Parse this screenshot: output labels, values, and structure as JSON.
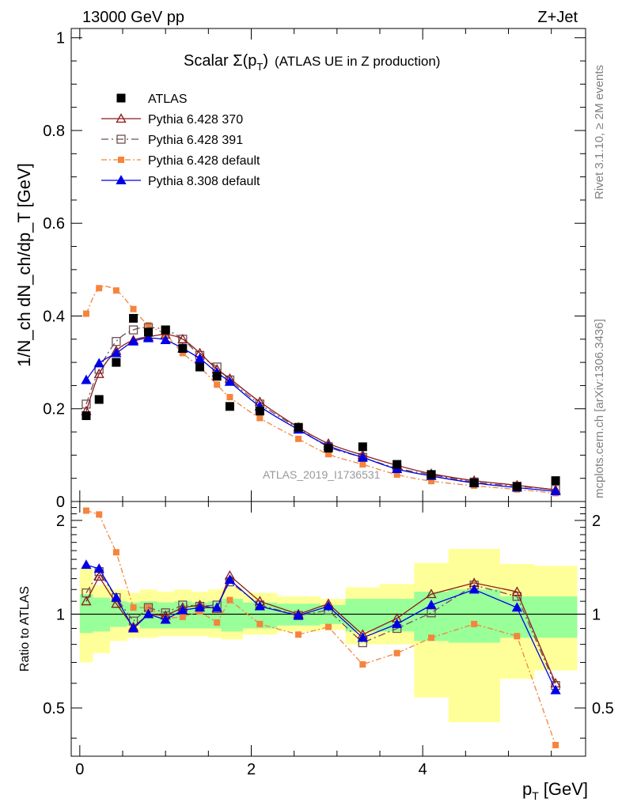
{
  "header": {
    "left": "13000 GeV pp",
    "right": "Z+Jet"
  },
  "side_labels": {
    "rivet": "Rivet 3.1.10, ≥ 2M events",
    "mcplots": "mcplots.cern.ch [arXiv:1306.3436]"
  },
  "watermark": "ATLAS_2019_I1736531",
  "colors": {
    "atlas": "#000000",
    "p370": "#8b1a1a",
    "p391": "#6e4e52",
    "p6def": "#f5843c",
    "p8def": "#0000e6",
    "band_yellow": "#ffff99",
    "band_green": "#99ff99"
  },
  "chart_data": [
    {
      "type": "line",
      "title": "Scalar Σ(p_T) (ATLAS UE in Z production)",
      "title_main": "Scalar ",
      "title_sigma": "Σ(p",
      "title_sub": "T",
      "title_close": ")",
      "title_rest": "(ATLAS UE in Z production)",
      "ylabel": "1/N_ch dN_ch/dp_T [GeV]",
      "xlim": [
        -0.1,
        5.9
      ],
      "ylim": [
        0,
        1.02
      ],
      "yticks": [
        0,
        0.2,
        0.4,
        0.6,
        0.8,
        1
      ],
      "yticklabels": [
        "0",
        "0.2",
        "0.4",
        "0.6",
        "0.8",
        "1"
      ],
      "x": [
        0.075,
        0.225,
        0.425,
        0.625,
        0.8,
        1.0,
        1.2,
        1.4,
        1.6,
        1.75,
        2.1,
        2.55,
        2.9,
        3.3,
        3.7,
        4.1,
        4.6,
        5.1,
        5.55
      ],
      "series": [
        {
          "key": "atlas",
          "name": "ATLAS",
          "style": "data",
          "values": [
            0.185,
            0.22,
            0.3,
            0.395,
            0.365,
            0.37,
            0.33,
            0.29,
            0.27,
            0.205,
            0.195,
            0.16,
            0.115,
            0.118,
            0.08,
            0.058,
            0.04,
            0.032,
            0.045
          ]
        },
        {
          "key": "p370",
          "name": "Pythia 6.428 370",
          "style": "triangle-open",
          "values": [
            0.195,
            0.275,
            0.325,
            0.348,
            0.355,
            0.36,
            0.35,
            0.32,
            0.285,
            0.265,
            0.215,
            0.16,
            0.125,
            0.1,
            0.078,
            0.06,
            0.045,
            0.035,
            0.025
          ]
        },
        {
          "key": "p391",
          "name": "Pythia 6.428 391",
          "style": "square-open",
          "values": [
            0.21,
            0.285,
            0.345,
            0.37,
            0.375,
            0.37,
            0.35,
            0.315,
            0.29,
            0.262,
            0.21,
            0.158,
            0.118,
            0.095,
            0.072,
            0.058,
            0.042,
            0.033,
            0.026
          ]
        },
        {
          "key": "p6def",
          "name": "Pythia 6.428 default",
          "style": "square-filled",
          "values": [
            0.405,
            0.46,
            0.455,
            0.415,
            0.38,
            0.36,
            0.32,
            0.29,
            0.252,
            0.225,
            0.18,
            0.135,
            0.102,
            0.08,
            0.058,
            0.044,
            0.034,
            0.026,
            0.018
          ]
        },
        {
          "key": "p8def",
          "name": "Pythia 8.308 default",
          "style": "triangle-filled",
          "values": [
            0.262,
            0.298,
            0.32,
            0.345,
            0.352,
            0.348,
            0.33,
            0.308,
            0.278,
            0.258,
            0.205,
            0.155,
            0.12,
            0.095,
            0.07,
            0.055,
            0.04,
            0.03,
            0.022
          ]
        }
      ],
      "legend_position": "top-left"
    },
    {
      "type": "line",
      "ylabel": "Ratio to ATLAS",
      "xlabel": "p_T [GeV]",
      "xlabel_main": "p",
      "xlabel_sub": "T",
      "xlabel_unit": "[GeV]",
      "xlim": [
        -0.1,
        5.9
      ],
      "ylim": [
        0.35,
        2.3
      ],
      "xticks": [
        0,
        2,
        4
      ],
      "xticklabels": [
        "0",
        "2",
        "4"
      ],
      "yticks": [
        0.5,
        1,
        2
      ],
      "yticklabels": [
        "0.5",
        "1",
        "2"
      ],
      "reference_line": 1,
      "bins": [
        0,
        0.15,
        0.35,
        0.55,
        0.7,
        0.9,
        1.1,
        1.3,
        1.5,
        1.65,
        1.9,
        2.3,
        2.8,
        3.1,
        3.5,
        3.9,
        4.3,
        4.9,
        5.3,
        5.8
      ],
      "band_green": [
        [
          0.87,
          1.16
        ],
        [
          0.88,
          1.13
        ],
        [
          0.91,
          1.1
        ],
        [
          0.92,
          1.09
        ],
        [
          0.9,
          1.1
        ],
        [
          0.9,
          1.09
        ],
        [
          0.9,
          1.1
        ],
        [
          0.9,
          1.09
        ],
        [
          0.9,
          1.1
        ],
        [
          0.88,
          1.12
        ],
        [
          0.9,
          1.09
        ],
        [
          0.92,
          1.08
        ],
        [
          0.93,
          1.07
        ],
        [
          0.88,
          1.12
        ],
        [
          0.88,
          1.12
        ],
        [
          0.82,
          1.18
        ],
        [
          0.81,
          1.2
        ],
        [
          0.84,
          1.14
        ],
        [
          0.84,
          1.14
        ]
      ],
      "band_yellow": [
        [
          0.7,
          1.4
        ],
        [
          0.75,
          1.24
        ],
        [
          0.82,
          1.2
        ],
        [
          0.84,
          1.17
        ],
        [
          0.84,
          1.2
        ],
        [
          0.85,
          1.18
        ],
        [
          0.85,
          1.2
        ],
        [
          0.85,
          1.18
        ],
        [
          0.84,
          1.2
        ],
        [
          0.83,
          1.22
        ],
        [
          0.86,
          1.17
        ],
        [
          0.88,
          1.14
        ],
        [
          0.89,
          1.12
        ],
        [
          0.8,
          1.22
        ],
        [
          0.8,
          1.25
        ],
        [
          0.54,
          1.46
        ],
        [
          0.45,
          1.62
        ],
        [
          0.62,
          1.45
        ],
        [
          0.66,
          1.43
        ]
      ],
      "x": [
        0.075,
        0.225,
        0.425,
        0.625,
        0.8,
        1.0,
        1.2,
        1.4,
        1.6,
        1.75,
        2.1,
        2.55,
        2.9,
        3.3,
        3.7,
        4.1,
        4.6,
        5.1,
        5.55
      ],
      "series": [
        {
          "key": "p370",
          "name": "Pythia 6.428 370",
          "style": "triangle-open",
          "values": [
            1.1,
            1.32,
            1.08,
            0.91,
            1.0,
            0.99,
            1.05,
            1.07,
            1.04,
            1.33,
            1.1,
            1.0,
            1.08,
            0.86,
            0.97,
            1.16,
            1.26,
            1.18,
            0.6
          ]
        },
        {
          "key": "p391",
          "name": "Pythia 6.428 391",
          "style": "square-open",
          "values": [
            1.17,
            1.37,
            1.13,
            0.95,
            1.05,
            1.01,
            1.07,
            1.06,
            1.07,
            1.27,
            1.07,
            0.99,
            1.03,
            0.81,
            0.9,
            1.01,
            1.24,
            1.14,
            0.59
          ]
        },
        {
          "key": "p6def",
          "name": "Pythia 6.428 default",
          "style": "square-filled",
          "values": [
            2.15,
            2.09,
            1.58,
            1.05,
            1.05,
            0.97,
            0.98,
            1.02,
            0.94,
            1.11,
            0.93,
            0.86,
            0.91,
            0.69,
            0.75,
            0.84,
            0.93,
            0.85,
            0.38
          ]
        },
        {
          "key": "p8def",
          "name": "Pythia 8.308 default",
          "style": "triangle-filled",
          "values": [
            1.44,
            1.4,
            1.13,
            0.9,
            1.0,
            0.96,
            1.03,
            1.05,
            1.05,
            1.29,
            1.06,
            0.99,
            1.06,
            0.84,
            0.93,
            1.07,
            1.2,
            1.05,
            0.57
          ]
        }
      ]
    }
  ]
}
